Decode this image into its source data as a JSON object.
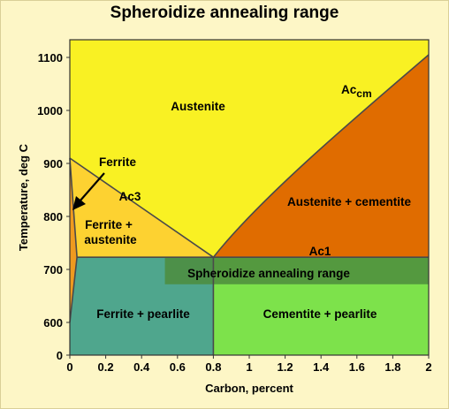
{
  "chart_data": {
    "type": "area",
    "title": "Spheroidize annealing range",
    "xlabel": "Carbon, percent",
    "ylabel": "Temperature, deg C",
    "xlim": [
      0,
      2
    ],
    "y_ticks": [
      0,
      600,
      700,
      800,
      900,
      1000,
      1100
    ],
    "x_ticks": [
      "0",
      "0.2",
      "0.4",
      "0.6",
      "0.8",
      "1",
      "1.2",
      "1.4",
      "1.6",
      "1.8",
      "2"
    ],
    "y_tick_labels": [
      "0",
      "600",
      "700",
      "800",
      "900",
      "1000",
      "1100"
    ],
    "axis_break": "y axis jumps from 0 to ~550",
    "lines": [
      {
        "name": "Ac3",
        "points": [
          [
            0,
            910
          ],
          [
            0.8,
            723
          ]
        ]
      },
      {
        "name": "Accm",
        "points": [
          [
            0.8,
            723
          ],
          [
            1.2,
            860
          ],
          [
            1.6,
            985
          ],
          [
            2.0,
            1105
          ]
        ]
      },
      {
        "name": "Ac1",
        "points": [
          [
            0.04,
            723
          ],
          [
            2.0,
            723
          ]
        ]
      },
      {
        "name": "Ferrite boundary",
        "points": [
          [
            0,
            910
          ],
          [
            0.04,
            723
          ],
          [
            0,
            600
          ]
        ]
      }
    ],
    "regions": [
      {
        "name": "Austenite",
        "color": "#f9f123"
      },
      {
        "name": "Ferrite + austenite",
        "color": "#fdd231"
      },
      {
        "name": "Austenite + cementite",
        "color": "#e06c00"
      },
      {
        "name": "Ferrite",
        "color": "#ef9a1f"
      },
      {
        "name": "Ferrite + pearlite",
        "color": "#4fa68d"
      },
      {
        "name": "Cementite + pearlite",
        "color": "#7de24b"
      },
      {
        "name": "Spheroidize annealing range",
        "color": "#4c8c3d",
        "x": [
          0.53,
          2.0
        ],
        "y": [
          672,
          723
        ]
      }
    ],
    "labels": {
      "austenite": "Austenite",
      "ferrite": "Ferrite",
      "ac3": "Ac3",
      "ferrite_austenite_1": "Ferrite +",
      "ferrite_austenite_2": "austenite",
      "accm_main": "Ac",
      "accm_sub": "cm",
      "austenite_cementite": "Austenite + cementite",
      "ac1": "Ac1",
      "spheroidize": "Spheroidize annealing range",
      "ferrite_pearlite": "Ferrite + pearlite",
      "cementite_pearlite": "Cementite + pearlite"
    }
  }
}
